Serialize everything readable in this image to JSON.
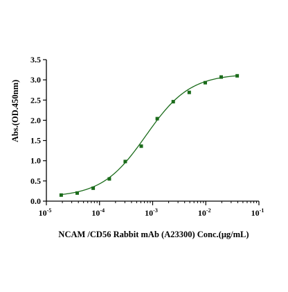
{
  "chart_data": {
    "type": "scatter",
    "xlabel": "NCAM /CD56 Rabbit mAb (A23300) Conc.(μg/mL)",
    "ylabel": "Abs.(OD.450nm)",
    "x_scale": "log",
    "xlim": [
      1e-05,
      0.1
    ],
    "ylim": [
      0,
      3.5
    ],
    "x_ticks": [
      {
        "base": "10",
        "exp": "-5",
        "value": 1e-05
      },
      {
        "base": "10",
        "exp": "-4",
        "value": 0.0001
      },
      {
        "base": "10",
        "exp": "-3",
        "value": 0.001
      },
      {
        "base": "10",
        "exp": "-2",
        "value": 0.01
      },
      {
        "base": "10",
        "exp": "-1",
        "value": 0.1
      }
    ],
    "y_ticks": [
      "0.0",
      "0.5",
      "1.0",
      "1.5",
      "2.0",
      "2.5",
      "3.0",
      "3.5"
    ],
    "grid": false,
    "colors": {
      "series": "#1a6b1a",
      "axis": "#000000"
    },
    "series": [
      {
        "x": [
          1.9e-05,
          3.8e-05,
          7.6e-05,
          0.000153,
          0.000305,
          0.00061,
          0.00122,
          0.00244,
          0.00488,
          0.00977,
          0.0195,
          0.039
        ],
        "y": [
          0.15,
          0.2,
          0.32,
          0.55,
          0.98,
          1.36,
          2.04,
          2.46,
          2.69,
          2.93,
          3.07,
          3.1
        ],
        "fit": {
          "model": "4PL",
          "bottom": 0.1,
          "top": 3.15,
          "ec50": 0.00075,
          "hill": 1.05
        }
      }
    ]
  }
}
